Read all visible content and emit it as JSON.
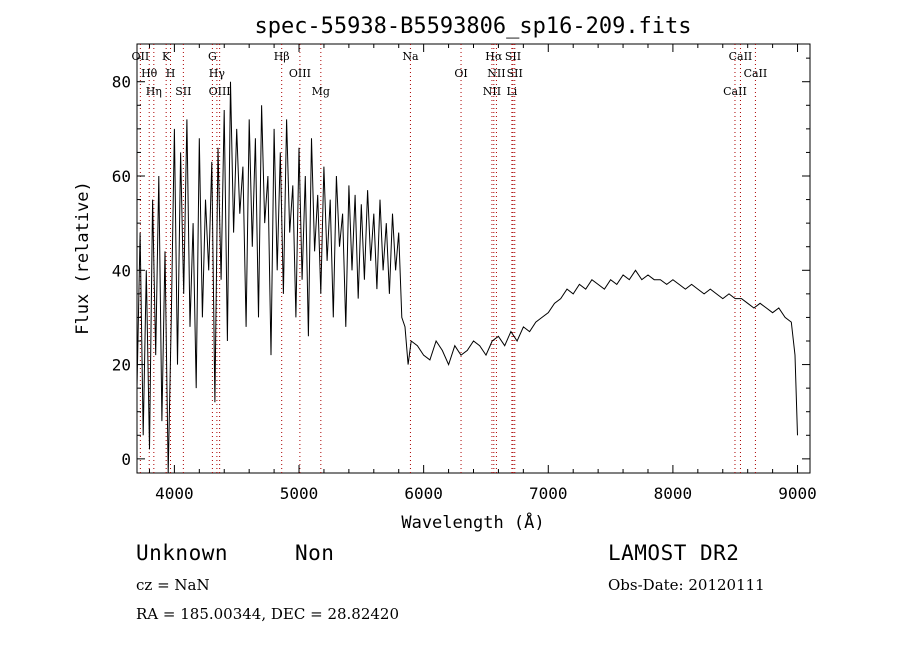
{
  "chart_data": {
    "type": "line",
    "title": "spec-55938-B5593806_sp16-209.fits",
    "xlabel": "Wavelength (Å)",
    "ylabel": "Flux (relative)",
    "xlim": [
      3700,
      9100
    ],
    "ylim": [
      -3,
      88
    ],
    "x_ticks": [
      4000,
      5000,
      6000,
      7000,
      8000,
      9000
    ],
    "y_ticks": [
      0,
      20,
      40,
      60,
      80
    ],
    "grid": false,
    "line_color": "#000000",
    "marker_color": "#aa0000",
    "series": [
      {
        "x": [
          3700,
          3725,
          3750,
          3775,
          3800,
          3825,
          3850,
          3875,
          3900,
          3925,
          3950,
          3975,
          4000,
          4025,
          4050,
          4075,
          4100,
          4125,
          4150,
          4175,
          4200,
          4225,
          4250,
          4275,
          4300,
          4325,
          4350,
          4375,
          4400,
          4425,
          4450,
          4475,
          4500,
          4525,
          4550,
          4575,
          4600,
          4625,
          4650,
          4675,
          4700,
          4725,
          4750,
          4775,
          4800,
          4825,
          4850,
          4875,
          4900,
          4925,
          4950,
          4975,
          5000,
          5025,
          5050,
          5075,
          5100,
          5125,
          5150,
          5175,
          5200,
          5225,
          5250,
          5275,
          5300,
          5325,
          5350,
          5375,
          5400,
          5425,
          5450,
          5475,
          5500,
          5525,
          5550,
          5575,
          5600,
          5625,
          5650,
          5675,
          5700,
          5725,
          5750,
          5775,
          5800,
          5825,
          5850,
          5875,
          5900,
          5950,
          6000,
          6050,
          6100,
          6150,
          6200,
          6250,
          6300,
          6350,
          6400,
          6450,
          6500,
          6550,
          6600,
          6650,
          6700,
          6750,
          6800,
          6850,
          6900,
          6950,
          7000,
          7050,
          7100,
          7150,
          7200,
          7250,
          7300,
          7350,
          7400,
          7450,
          7500,
          7550,
          7600,
          7650,
          7700,
          7750,
          7800,
          7850,
          7900,
          7950,
          8000,
          8050,
          8100,
          8150,
          8200,
          8250,
          8300,
          8350,
          8400,
          8450,
          8500,
          8550,
          8600,
          8650,
          8700,
          8750,
          8800,
          8850,
          8900,
          8950,
          8980,
          9000
        ],
        "y": [
          15,
          48,
          5,
          40,
          2,
          55,
          22,
          60,
          8,
          44,
          -3,
          30,
          70,
          20,
          65,
          35,
          72,
          28,
          50,
          15,
          68,
          30,
          55,
          40,
          63,
          12,
          66,
          38,
          74,
          25,
          80,
          48,
          70,
          52,
          62,
          28,
          72,
          45,
          68,
          30,
          75,
          50,
          60,
          22,
          70,
          40,
          65,
          35,
          72,
          48,
          58,
          30,
          66,
          38,
          60,
          26,
          68,
          44,
          56,
          35,
          62,
          42,
          55,
          30,
          60,
          45,
          52,
          28,
          58,
          40,
          56,
          34,
          54,
          38,
          57,
          42,
          52,
          36,
          55,
          40,
          50,
          35,
          52,
          40,
          48,
          30,
          28,
          20,
          25,
          24,
          22,
          21,
          25,
          23,
          20,
          24,
          22,
          23,
          25,
          24,
          22,
          25,
          26,
          24,
          27,
          25,
          28,
          27,
          29,
          30,
          31,
          33,
          34,
          36,
          35,
          37,
          36,
          38,
          37,
          36,
          38,
          37,
          39,
          38,
          40,
          38,
          39,
          38,
          38,
          37,
          38,
          37,
          36,
          37,
          36,
          35,
          36,
          35,
          34,
          35,
          34,
          34,
          33,
          32,
          33,
          32,
          31,
          32,
          30,
          29,
          22,
          5
        ]
      }
    ],
    "lines": [
      {
        "name": "OII",
        "x": 3727
      },
      {
        "name": "Hθ",
        "x": 3798
      },
      {
        "name": "Hη",
        "x": 3835
      },
      {
        "name": "K",
        "x": 3934
      },
      {
        "name": "H",
        "x": 3969
      },
      {
        "name": "SII",
        "x": 4072
      },
      {
        "name": "G",
        "x": 4305
      },
      {
        "name": "Hγ",
        "x": 4341
      },
      {
        "name": "OIII",
        "x": 4363
      },
      {
        "name": "Hβ",
        "x": 4861
      },
      {
        "name": "OIII",
        "x": 5007
      },
      {
        "name": "Mg",
        "x": 5175
      },
      {
        "name": "Na",
        "x": 5894
      },
      {
        "name": "OI",
        "x": 6300
      },
      {
        "name": "NII",
        "x": 6548
      },
      {
        "name": "Hα",
        "x": 6563
      },
      {
        "name": "NII",
        "x": 6584
      },
      {
        "name": "Li",
        "x": 6708
      },
      {
        "name": "SII",
        "x": 6717
      },
      {
        "name": "SII",
        "x": 6731
      },
      {
        "name": "CaII",
        "x": 8498
      },
      {
        "name": "CaII",
        "x": 8542
      },
      {
        "name": "CaII",
        "x": 8662
      }
    ]
  },
  "info": {
    "class": "Unknown",
    "subclass": "Non",
    "survey": "LAMOST DR2",
    "cz": "cz = NaN",
    "obs_date": "Obs-Date: 20120111",
    "coords": "RA = 185.00344, DEC =  28.82420"
  }
}
